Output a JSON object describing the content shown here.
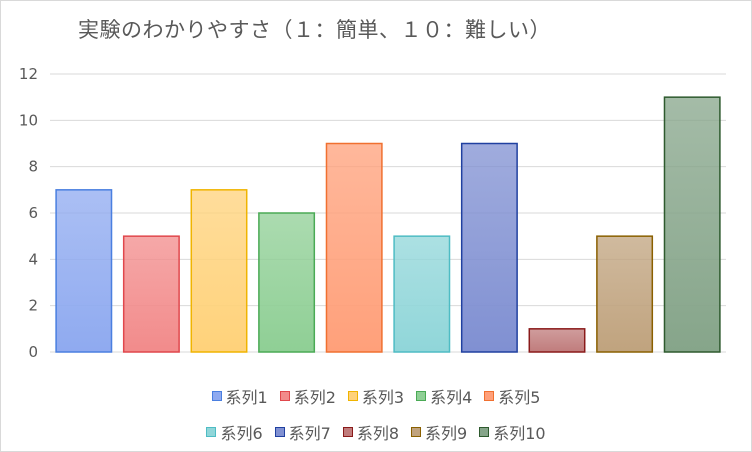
{
  "chart_data": {
    "type": "bar",
    "title": "実験のわかりやすさ（１：簡単、１０：難しい）",
    "xlabel": "",
    "ylabel": "",
    "ylim": [
      0,
      12
    ],
    "yticks": [
      0,
      2,
      4,
      6,
      8,
      10,
      12
    ],
    "grid": true,
    "legend_position": "bottom",
    "series": [
      {
        "name": "系列1",
        "value": 7,
        "color": "#8faaf0",
        "border": "#4a7fe0"
      },
      {
        "name": "系列2",
        "value": 5,
        "color": "#f28b8b",
        "border": "#e0474c"
      },
      {
        "name": "系列3",
        "value": 7,
        "color": "#ffd27a",
        "border": "#f0b400"
      },
      {
        "name": "系列4",
        "value": 6,
        "color": "#8fcf95",
        "border": "#4aaa55"
      },
      {
        "name": "系列5",
        "value": 9,
        "color": "#ffa07a",
        "border": "#f07030"
      },
      {
        "name": "系列6",
        "value": 5,
        "color": "#90d6d9",
        "border": "#4ebcc4"
      },
      {
        "name": "系列7",
        "value": 9,
        "color": "#8090d2",
        "border": "#2040a0"
      },
      {
        "name": "系列8",
        "value": 1,
        "color": "#c07c7c",
        "border": "#8a1a1a"
      },
      {
        "name": "系列9",
        "value": 5,
        "color": "#c0a37e",
        "border": "#8a6000"
      },
      {
        "name": "系列10",
        "value": 11,
        "color": "#86a58a",
        "border": "#2e5a2e"
      }
    ]
  }
}
